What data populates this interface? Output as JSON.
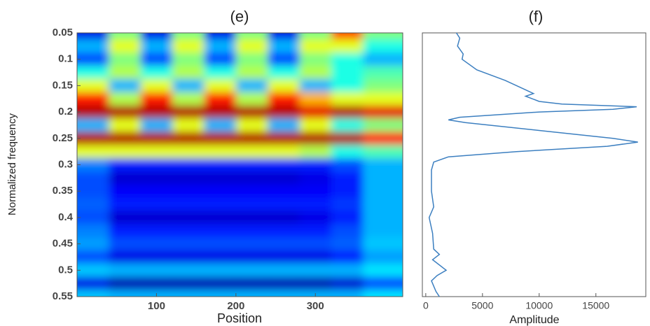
{
  "chart_data": [
    {
      "type": "heatmap",
      "title": "(e)",
      "x_label": "Position",
      "y_label": "Normalized frequency",
      "colormap": "jet",
      "xlim": [
        0,
        410
      ],
      "ylim": [
        0.05,
        0.55
      ],
      "xticks": [
        100,
        200,
        300
      ],
      "yticks": [
        0.05,
        0.1,
        0.15,
        0.2,
        0.25,
        0.3,
        0.35,
        0.4,
        0.45,
        0.5,
        0.55
      ],
      "x": [
        20,
        60,
        100,
        140,
        180,
        220,
        260,
        300,
        340,
        380
      ],
      "y": [
        0.05,
        0.075,
        0.1,
        0.125,
        0.15,
        0.175,
        0.2,
        0.225,
        0.25,
        0.275,
        0.3,
        0.325,
        0.35,
        0.375,
        0.4,
        0.425,
        0.45,
        0.475,
        0.5,
        0.525,
        0.55
      ],
      "z": [
        [
          0.1,
          0.5,
          0.1,
          0.5,
          0.1,
          0.5,
          0.1,
          0.5,
          0.8,
          0.5
        ],
        [
          0.3,
          0.6,
          0.3,
          0.6,
          0.3,
          0.6,
          0.3,
          0.6,
          0.6,
          0.4
        ],
        [
          0.2,
          0.5,
          0.2,
          0.5,
          0.2,
          0.5,
          0.2,
          0.5,
          0.4,
          0.3
        ],
        [
          0.4,
          0.55,
          0.4,
          0.55,
          0.4,
          0.55,
          0.4,
          0.55,
          0.4,
          0.45
        ],
        [
          0.6,
          0.3,
          0.6,
          0.3,
          0.6,
          0.3,
          0.6,
          0.3,
          0.4,
          0.5
        ],
        [
          0.85,
          0.55,
          0.85,
          0.55,
          0.85,
          0.55,
          0.85,
          0.7,
          0.6,
          0.6
        ],
        [
          0.95,
          0.95,
          0.95,
          0.95,
          0.95,
          0.95,
          0.95,
          0.9,
          0.95,
          0.9
        ],
        [
          0.3,
          0.6,
          0.3,
          0.6,
          0.3,
          0.6,
          0.3,
          0.6,
          0.4,
          0.5
        ],
        [
          0.95,
          0.95,
          0.95,
          0.95,
          0.95,
          0.95,
          0.95,
          0.95,
          0.95,
          0.85
        ],
        [
          0.6,
          0.6,
          0.6,
          0.6,
          0.6,
          0.6,
          0.6,
          0.55,
          0.4,
          0.45
        ],
        [
          0.25,
          0.15,
          0.15,
          0.15,
          0.15,
          0.15,
          0.15,
          0.15,
          0.2,
          0.3
        ],
        [
          0.2,
          0.08,
          0.08,
          0.08,
          0.08,
          0.08,
          0.08,
          0.1,
          0.15,
          0.3
        ],
        [
          0.2,
          0.12,
          0.12,
          0.12,
          0.12,
          0.12,
          0.12,
          0.12,
          0.15,
          0.3
        ],
        [
          0.22,
          0.15,
          0.15,
          0.15,
          0.15,
          0.15,
          0.15,
          0.15,
          0.18,
          0.3
        ],
        [
          0.2,
          0.08,
          0.08,
          0.08,
          0.08,
          0.08,
          0.08,
          0.1,
          0.15,
          0.3
        ],
        [
          0.25,
          0.15,
          0.15,
          0.15,
          0.15,
          0.15,
          0.15,
          0.15,
          0.2,
          0.3
        ],
        [
          0.28,
          0.2,
          0.2,
          0.2,
          0.2,
          0.2,
          0.2,
          0.2,
          0.22,
          0.32
        ],
        [
          0.2,
          0.1,
          0.1,
          0.1,
          0.1,
          0.1,
          0.1,
          0.1,
          0.15,
          0.28
        ],
        [
          0.32,
          0.3,
          0.3,
          0.3,
          0.3,
          0.3,
          0.3,
          0.3,
          0.3,
          0.35
        ],
        [
          0.1,
          0.05,
          0.05,
          0.05,
          0.05,
          0.05,
          0.05,
          0.05,
          0.08,
          0.2
        ],
        [
          0.32,
          0.3,
          0.3,
          0.3,
          0.3,
          0.3,
          0.3,
          0.3,
          0.3,
          0.35
        ]
      ]
    },
    {
      "type": "line",
      "title": "(f)",
      "x_label": "Amplitude",
      "color": "#3c7fc0",
      "xlim": [
        -300,
        19400
      ],
      "ylim": [
        0.05,
        0.55
      ],
      "xticks": [
        0,
        5000,
        10000,
        15000
      ],
      "y": [
        0.05,
        0.06,
        0.075,
        0.09,
        0.1,
        0.12,
        0.14,
        0.16,
        0.165,
        0.17,
        0.18,
        0.185,
        0.19,
        0.195,
        0.2,
        0.21,
        0.215,
        0.22,
        0.235,
        0.25,
        0.257,
        0.265,
        0.275,
        0.285,
        0.295,
        0.31,
        0.35,
        0.38,
        0.4,
        0.43,
        0.46,
        0.47,
        0.48,
        0.5,
        0.51,
        0.52,
        0.54,
        0.55
      ],
      "values": [
        2700,
        3000,
        2800,
        3300,
        3200,
        4500,
        7000,
        9000,
        9500,
        8800,
        10000,
        12000,
        18600,
        16500,
        10000,
        3000,
        2000,
        3500,
        10000,
        16500,
        18700,
        16000,
        8000,
        2000,
        700,
        500,
        500,
        700,
        300,
        600,
        700,
        1200,
        600,
        1800,
        1000,
        500,
        900,
        1200
      ]
    }
  ]
}
